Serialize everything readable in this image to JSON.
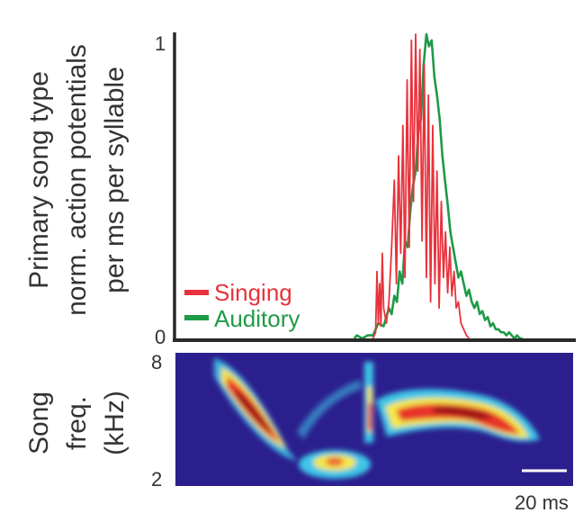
{
  "chart_data": [
    {
      "type": "line",
      "ylabel_lines": [
        "Primary song type",
        "norm. action potentials",
        "per ms per syllable"
      ],
      "y_ticks": [
        "1",
        "0"
      ],
      "ylim": [
        0,
        1
      ],
      "xlim_ms": [
        0,
        150
      ],
      "legend_position": "bottom-left",
      "series": [
        {
          "name": "Singing",
          "color": "#e8323c",
          "x": [
            74,
            75,
            75.5,
            76,
            76.5,
            77,
            77.5,
            78,
            79,
            80,
            81,
            82,
            82.8,
            83.6,
            84.4,
            85.2,
            86,
            86.8,
            87.6,
            88.4,
            89.2,
            90,
            90.8,
            91.6,
            92.4,
            93.2,
            94,
            94.8,
            95.6,
            96.4,
            97.2,
            98,
            98.8,
            99.6,
            100.4,
            101.2,
            102,
            102.8,
            103.6,
            104.4,
            105.2,
            106,
            107,
            108,
            109,
            110
          ],
          "y": [
            0,
            0.02,
            0.22,
            0.05,
            0.18,
            0.04,
            0.28,
            0.1,
            0.05,
            0.12,
            0.3,
            0.52,
            0.18,
            0.6,
            0.28,
            0.7,
            0.2,
            0.85,
            0.3,
            0.98,
            0.45,
            1.0,
            0.55,
            0.95,
            0.32,
            0.9,
            0.2,
            0.8,
            0.12,
            0.7,
            0.18,
            0.55,
            0.1,
            0.45,
            0.2,
            0.35,
            0.15,
            0.3,
            0.14,
            0.22,
            0.1,
            0.12,
            0.05,
            0.03,
            0.01,
            0
          ]
        },
        {
          "name": "Auditory",
          "color": "#1f9a47",
          "x": [
            67,
            68,
            70,
            72,
            74,
            76,
            78,
            80,
            81,
            82,
            83,
            84,
            85,
            86,
            87,
            88,
            89,
            90,
            91,
            92,
            93,
            94,
            95,
            96,
            97,
            98,
            99,
            100,
            101,
            102,
            103,
            104,
            105,
            106,
            107,
            108,
            109,
            110,
            111,
            112,
            113,
            114,
            115,
            116,
            117,
            118,
            119,
            120,
            121,
            122,
            123,
            124,
            125,
            126,
            127,
            128,
            129,
            130
          ],
          "y": [
            0.0,
            0.01,
            0.0,
            0.01,
            0.01,
            0.05,
            0.04,
            0.1,
            0.08,
            0.14,
            0.12,
            0.22,
            0.18,
            0.32,
            0.3,
            0.42,
            0.5,
            0.55,
            0.68,
            0.72,
            0.9,
            1.0,
            0.96,
            0.98,
            0.86,
            0.8,
            0.72,
            0.6,
            0.52,
            0.44,
            0.35,
            0.3,
            0.25,
            0.2,
            0.22,
            0.18,
            0.14,
            0.16,
            0.12,
            0.1,
            0.12,
            0.08,
            0.09,
            0.06,
            0.07,
            0.04,
            0.05,
            0.03,
            0.03,
            0.02,
            0.02,
            0.01,
            0.02,
            0.01,
            0.0,
            0.01,
            0.0,
            0.0
          ]
        }
      ]
    },
    {
      "type": "heatmap",
      "ylabel_lines": [
        "Song",
        "freq.",
        "(kHz)"
      ],
      "y_ticks": [
        "8",
        "2"
      ],
      "ylim_khz": [
        2,
        8
      ],
      "scale_bar_label": "20 ms",
      "colormap": [
        "#2b1f8e",
        "#3ec6e8",
        "#f4e84a",
        "#e8302a",
        "#8a0f0f"
      ]
    }
  ]
}
